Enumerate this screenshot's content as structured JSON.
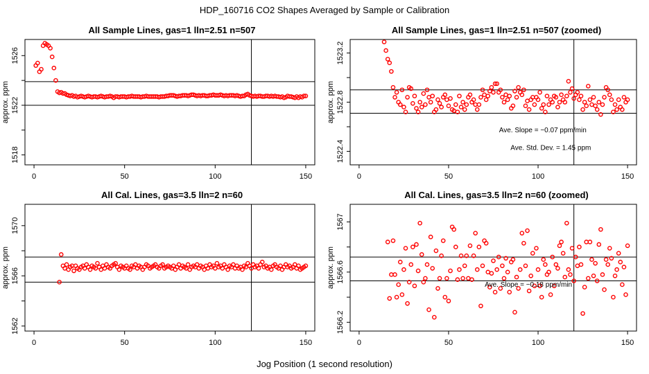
{
  "figure": {
    "title": "HDP_160716  CO2 Shapes Averaged by Sample or Calibration",
    "xlabel": "Jog Position (1 second resolution)"
  },
  "colors": {
    "points": "#ff0000",
    "axes": "#000000"
  },
  "chart_data": [
    {
      "type": "scatter",
      "title": "All Sample Lines, gas=1 lln=2.51 n=507",
      "ylabel": "approx. ppm",
      "xlim": [
        -5,
        155
      ],
      "ylim": [
        1517.2,
        1527.3
      ],
      "xticks": [
        0,
        50,
        100,
        150
      ],
      "yticks": [
        1518,
        1522,
        1526
      ],
      "hlines": [
        1522.0,
        1523.9
      ],
      "vline": 120,
      "x": [
        1,
        2,
        3,
        4,
        5,
        6,
        7,
        8,
        9,
        10,
        11,
        12,
        13,
        14,
        15,
        16,
        17,
        18,
        19,
        20,
        21,
        22,
        23,
        24,
        25,
        26,
        27,
        28,
        29,
        30,
        31,
        32,
        33,
        34,
        35,
        36,
        37,
        38,
        39,
        40,
        41,
        42,
        43,
        44,
        45,
        46,
        47,
        48,
        49,
        50,
        51,
        52,
        53,
        54,
        55,
        56,
        57,
        58,
        59,
        60,
        61,
        62,
        63,
        64,
        65,
        66,
        67,
        68,
        69,
        70,
        71,
        72,
        73,
        74,
        75,
        76,
        77,
        78,
        79,
        80,
        81,
        82,
        83,
        84,
        85,
        86,
        87,
        88,
        89,
        90,
        91,
        92,
        93,
        94,
        95,
        96,
        97,
        98,
        99,
        100,
        101,
        102,
        103,
        104,
        105,
        106,
        107,
        108,
        109,
        110,
        111,
        112,
        113,
        114,
        115,
        116,
        117,
        118,
        119,
        120,
        121,
        122,
        123,
        124,
        125,
        126,
        127,
        128,
        129,
        130,
        131,
        132,
        133,
        134,
        135,
        136,
        137,
        138,
        139,
        140,
        141,
        142,
        143,
        144,
        145,
        146,
        147,
        148,
        149,
        150
      ],
      "y": [
        1525.2,
        1525.4,
        1524.7,
        1524.9,
        1526.8,
        1527.0,
        1526.9,
        1526.8,
        1526.6,
        1525.9,
        1525.0,
        1524.0,
        1523.1,
        1523.0,
        1523.05,
        1522.95,
        1522.95,
        1522.85,
        1522.8,
        1522.75,
        1522.8,
        1522.7,
        1522.75,
        1522.65,
        1522.7,
        1522.75,
        1522.7,
        1522.65,
        1522.7,
        1522.75,
        1522.7,
        1522.65,
        1522.7,
        1522.7,
        1522.65,
        1522.7,
        1522.75,
        1522.7,
        1522.65,
        1522.7,
        1522.7,
        1522.75,
        1522.7,
        1522.6,
        1522.7,
        1522.7,
        1522.65,
        1522.7,
        1522.7,
        1522.7,
        1522.65,
        1522.7,
        1522.7,
        1522.75,
        1522.7,
        1522.7,
        1522.7,
        1522.7,
        1522.65,
        1522.7,
        1522.7,
        1522.75,
        1522.7,
        1522.7,
        1522.7,
        1522.7,
        1522.7,
        1522.7,
        1522.65,
        1522.7,
        1522.7,
        1522.7,
        1522.75,
        1522.75,
        1522.8,
        1522.8,
        1522.8,
        1522.75,
        1522.7,
        1522.75,
        1522.75,
        1522.8,
        1522.8,
        1522.8,
        1522.75,
        1522.8,
        1522.85,
        1522.85,
        1522.8,
        1522.75,
        1522.8,
        1522.75,
        1522.8,
        1522.8,
        1522.75,
        1522.75,
        1522.8,
        1522.8,
        1522.85,
        1522.8,
        1522.8,
        1522.8,
        1522.85,
        1522.8,
        1522.75,
        1522.8,
        1522.75,
        1522.8,
        1522.8,
        1522.8,
        1522.75,
        1522.8,
        1522.75,
        1522.7,
        1522.75,
        1522.75,
        1522.85,
        1522.9,
        1522.8,
        1522.75,
        1522.7,
        1522.75,
        1522.7,
        1522.75,
        1522.75,
        1522.7,
        1522.7,
        1522.75,
        1522.75,
        1522.7,
        1522.75,
        1522.7,
        1522.75,
        1522.7,
        1522.7,
        1522.65,
        1522.7,
        1522.6,
        1522.65,
        1522.75,
        1522.7,
        1522.7,
        1522.65,
        1522.6,
        1522.7,
        1522.6,
        1522.7,
        1522.65,
        1522.75,
        1522.75
      ]
    },
    {
      "type": "scatter",
      "title": "All Sample Lines, gas=1 lln=2.51 n=507 (zoomed)",
      "ylabel": "approx. ppm",
      "xlim": [
        -5,
        155
      ],
      "ylim": [
        1522.29,
        1523.31
      ],
      "xticks": [
        0,
        50,
        100,
        150
      ],
      "yticks": [
        1522.4,
        1522.8,
        1523.2
      ],
      "hlines": [
        1522.9,
        1522.71
      ],
      "vline": 120,
      "annotations": [
        "Ave. Slope =  −0.07  ppm/min",
        "Ave. Std. Dev. =  1.45  ppm"
      ],
      "x": [
        14,
        15,
        16,
        17,
        18,
        19,
        20,
        21,
        22,
        23,
        24,
        25,
        26,
        27,
        28,
        29,
        30,
        31,
        32,
        33,
        34,
        35,
        36,
        37,
        38,
        39,
        40,
        41,
        42,
        43,
        44,
        45,
        46,
        47,
        48,
        49,
        50,
        51,
        52,
        53,
        54,
        55,
        56,
        57,
        58,
        59,
        60,
        61,
        62,
        63,
        64,
        65,
        66,
        67,
        68,
        69,
        70,
        71,
        72,
        73,
        74,
        75,
        76,
        77,
        78,
        79,
        80,
        81,
        82,
        83,
        84,
        85,
        86,
        87,
        88,
        89,
        90,
        91,
        92,
        93,
        94,
        95,
        96,
        97,
        98,
        99,
        100,
        101,
        102,
        103,
        104,
        105,
        106,
        107,
        108,
        109,
        110,
        111,
        112,
        113,
        114,
        115,
        116,
        117,
        118,
        119,
        120,
        121,
        122,
        123,
        124,
        125,
        126,
        127,
        128,
        129,
        130,
        131,
        132,
        133,
        134,
        135,
        136,
        137,
        138,
        139,
        140,
        141,
        142,
        143,
        144,
        145,
        146,
        147,
        148,
        149,
        150
      ],
      "y": [
        1523.29,
        1523.22,
        1523.15,
        1523.12,
        1523.05,
        1522.92,
        1522.84,
        1522.88,
        1522.8,
        1522.78,
        1522.9,
        1522.76,
        1522.72,
        1522.84,
        1522.92,
        1522.91,
        1522.79,
        1522.85,
        1522.75,
        1522.72,
        1522.8,
        1522.76,
        1522.87,
        1522.78,
        1522.9,
        1522.84,
        1522.8,
        1522.85,
        1522.72,
        1522.74,
        1522.82,
        1522.79,
        1522.76,
        1522.84,
        1522.86,
        1522.82,
        1522.77,
        1522.83,
        1522.74,
        1522.73,
        1522.78,
        1522.72,
        1522.85,
        1522.76,
        1522.8,
        1522.74,
        1522.78,
        1522.84,
        1522.86,
        1522.8,
        1522.82,
        1522.78,
        1522.74,
        1522.78,
        1522.84,
        1522.9,
        1522.86,
        1522.82,
        1522.85,
        1522.89,
        1522.92,
        1522.88,
        1522.95,
        1522.95,
        1522.88,
        1522.9,
        1522.84,
        1522.8,
        1522.86,
        1522.82,
        1522.85,
        1522.75,
        1522.77,
        1522.89,
        1522.84,
        1522.92,
        1522.88,
        1522.86,
        1522.9,
        1522.77,
        1522.81,
        1522.74,
        1522.82,
        1522.84,
        1522.78,
        1522.84,
        1522.82,
        1522.88,
        1522.75,
        1522.78,
        1522.72,
        1522.85,
        1522.78,
        1522.82,
        1522.8,
        1522.85,
        1522.84,
        1522.76,
        1522.8,
        1522.86,
        1522.82,
        1522.8,
        1522.85,
        1522.97,
        1522.88,
        1522.91,
        1522.83,
        1522.86,
        1522.88,
        1522.82,
        1522.85,
        1522.74,
        1522.8,
        1522.77,
        1522.93,
        1522.82,
        1522.78,
        1522.84,
        1522.77,
        1522.74,
        1522.8,
        1522.7,
        1522.78,
        1522.84,
        1522.92,
        1522.9,
        1522.86,
        1522.82,
        1522.72,
        1522.78,
        1522.74,
        1522.82,
        1522.76,
        1522.74,
        1522.84,
        1522.8,
        1522.82
      ]
    },
    {
      "type": "scatter",
      "title": "All Cal. Lines, gas=3.5 lln=2 n=60",
      "ylabel": "approx. ppm",
      "xlim": [
        -5,
        155
      ],
      "ylim": [
        1561.6,
        1571.7
      ],
      "xticks": [
        0,
        50,
        100,
        150
      ],
      "yticks": [
        1562,
        1566,
        1570
      ],
      "hlines": [
        1567.5,
        1565.5
      ],
      "vline": 120,
      "x": [
        14,
        15,
        16,
        17,
        18,
        19,
        20,
        21,
        22,
        23,
        24,
        25,
        26,
        27,
        28,
        29,
        30,
        31,
        32,
        33,
        34,
        35,
        36,
        37,
        38,
        39,
        40,
        41,
        42,
        43,
        44,
        45,
        46,
        47,
        48,
        49,
        50,
        51,
        52,
        53,
        54,
        55,
        56,
        57,
        58,
        59,
        60,
        61,
        62,
        63,
        64,
        65,
        66,
        67,
        68,
        69,
        70,
        71,
        72,
        73,
        74,
        75,
        76,
        77,
        78,
        79,
        80,
        81,
        82,
        83,
        84,
        85,
        86,
        87,
        88,
        89,
        90,
        91,
        92,
        93,
        94,
        95,
        96,
        97,
        98,
        99,
        100,
        101,
        102,
        103,
        104,
        105,
        106,
        107,
        108,
        109,
        110,
        111,
        112,
        113,
        114,
        115,
        116,
        117,
        118,
        119,
        120,
        121,
        122,
        123,
        124,
        125,
        126,
        127,
        128,
        129,
        130,
        131,
        132,
        133,
        134,
        135,
        136,
        137,
        138,
        139,
        140,
        141,
        142,
        143,
        144,
        145,
        146,
        147,
        148,
        149,
        150
      ],
      "y": [
        1565.5,
        1567.7,
        1566.8,
        1566.6,
        1566.9,
        1566.5,
        1566.7,
        1566.8,
        1566.4,
        1566.8,
        1566.6,
        1566.5,
        1566.7,
        1566.8,
        1566.6,
        1566.9,
        1566.7,
        1566.5,
        1566.8,
        1566.7,
        1566.6,
        1567.0,
        1566.7,
        1566.5,
        1566.8,
        1566.6,
        1566.9,
        1566.7,
        1566.6,
        1566.8,
        1566.9,
        1567.0,
        1566.7,
        1566.5,
        1566.8,
        1566.7,
        1566.6,
        1566.8,
        1566.6,
        1566.5,
        1566.8,
        1566.7,
        1566.9,
        1566.6,
        1566.8,
        1566.7,
        1566.5,
        1566.7,
        1566.9,
        1566.8,
        1566.6,
        1566.7,
        1566.8,
        1566.9,
        1566.7,
        1566.6,
        1566.8,
        1566.9,
        1566.6,
        1566.7,
        1566.8,
        1566.7,
        1566.6,
        1566.8,
        1566.5,
        1566.7,
        1566.9,
        1566.6,
        1566.8,
        1566.7,
        1566.6,
        1566.9,
        1566.5,
        1566.7,
        1566.8,
        1566.7,
        1566.9,
        1566.6,
        1566.8,
        1566.7,
        1566.5,
        1566.8,
        1566.6,
        1566.9,
        1566.7,
        1566.8,
        1566.6,
        1567.0,
        1566.7,
        1566.8,
        1566.6,
        1566.9,
        1566.7,
        1566.5,
        1566.8,
        1566.7,
        1566.9,
        1566.6,
        1566.8,
        1566.6,
        1566.7,
        1566.5,
        1566.8,
        1566.7,
        1567.0,
        1566.8,
        1566.6,
        1566.9,
        1566.7,
        1566.8,
        1566.6,
        1566.9,
        1567.1,
        1566.7,
        1566.8,
        1566.6,
        1566.7,
        1566.5,
        1566.8,
        1566.9,
        1566.7,
        1566.6,
        1566.8,
        1566.5,
        1566.7,
        1566.9,
        1566.7,
        1566.8,
        1566.6,
        1566.7,
        1566.9,
        1566.6,
        1566.8,
        1566.5,
        1566.6,
        1566.7,
        1566.8
      ]
    },
    {
      "type": "scatter",
      "title": "All Cal. Lines, gas=3.5 lln=2 n=60 (zoomed)",
      "ylabel": "approx. ppm",
      "xlim": [
        -5,
        155
      ],
      "ylim": [
        1566.13,
        1567.14
      ],
      "xticks": [
        0,
        50,
        100,
        150
      ],
      "yticks": [
        1566.2,
        1566.6,
        1567.0
      ],
      "hlines": [
        1566.72,
        1566.53
      ],
      "vline": 120,
      "annotations": [
        "Ave. Slope =  −0.18  ppm/min"
      ],
      "x": [
        16,
        17,
        18,
        19,
        20,
        21,
        22,
        23,
        24,
        25,
        26,
        27,
        28,
        29,
        30,
        31,
        32,
        33,
        34,
        35,
        36,
        37,
        38,
        39,
        40,
        41,
        42,
        43,
        44,
        45,
        46,
        47,
        48,
        49,
        50,
        51,
        52,
        53,
        54,
        55,
        56,
        57,
        58,
        59,
        60,
        61,
        62,
        63,
        64,
        65,
        66,
        67,
        68,
        69,
        70,
        71,
        72,
        73,
        74,
        75,
        76,
        77,
        78,
        79,
        80,
        81,
        82,
        83,
        84,
        85,
        86,
        87,
        88,
        89,
        90,
        91,
        92,
        93,
        94,
        95,
        96,
        97,
        98,
        99,
        100,
        101,
        102,
        103,
        104,
        105,
        106,
        107,
        108,
        109,
        110,
        111,
        112,
        113,
        114,
        115,
        116,
        117,
        118,
        119,
        120,
        121,
        122,
        123,
        124,
        125,
        126,
        127,
        128,
        129,
        130,
        131,
        132,
        133,
        134,
        135,
        136,
        137,
        138,
        139,
        140,
        141,
        142,
        143,
        144,
        145,
        146,
        147,
        148,
        149,
        150
      ],
      "y": [
        1566.84,
        1566.39,
        1566.58,
        1566.85,
        1566.58,
        1566.4,
        1566.5,
        1566.68,
        1566.42,
        1566.62,
        1566.79,
        1566.35,
        1566.52,
        1566.66,
        1566.8,
        1566.49,
        1566.82,
        1566.61,
        1566.99,
        1566.74,
        1566.52,
        1566.55,
        1566.66,
        1566.3,
        1566.88,
        1566.63,
        1566.24,
        1566.77,
        1566.47,
        1566.55,
        1566.73,
        1566.85,
        1566.4,
        1566.55,
        1566.37,
        1566.61,
        1566.96,
        1566.94,
        1566.8,
        1566.54,
        1566.62,
        1566.73,
        1566.55,
        1566.65,
        1566.73,
        1566.55,
        1566.81,
        1566.54,
        1566.73,
        1566.91,
        1566.62,
        1566.8,
        1566.33,
        1566.65,
        1566.85,
        1566.83,
        1566.6,
        1566.48,
        1566.59,
        1566.69,
        1566.44,
        1566.62,
        1566.72,
        1566.47,
        1566.65,
        1566.55,
        1566.71,
        1566.6,
        1566.44,
        1566.68,
        1566.7,
        1566.28,
        1566.56,
        1566.47,
        1566.62,
        1566.91,
        1566.83,
        1566.65,
        1566.93,
        1566.45,
        1566.57,
        1566.75,
        1566.49,
        1566.79,
        1566.62,
        1566.49,
        1566.4,
        1566.7,
        1566.66,
        1566.58,
        1566.6,
        1566.42,
        1566.72,
        1566.49,
        1566.66,
        1566.63,
        1566.81,
        1566.84,
        1566.75,
        1566.56,
        1566.99,
        1566.62,
        1566.58,
        1566.79,
        1566.53,
        1566.72,
        1566.65,
        1566.8,
        1566.66,
        1566.27,
        1566.48,
        1566.84,
        1566.55,
        1566.84,
        1566.7,
        1566.57,
        1566.67,
        1566.53,
        1566.82,
        1566.94,
        1566.58,
        1566.46,
        1566.7,
        1566.66,
        1566.79,
        1566.71,
        1566.4,
        1566.57,
        1566.62,
        1566.75,
        1566.68,
        1566.5,
        1566.64,
        1566.42,
        1566.81
      ]
    }
  ]
}
